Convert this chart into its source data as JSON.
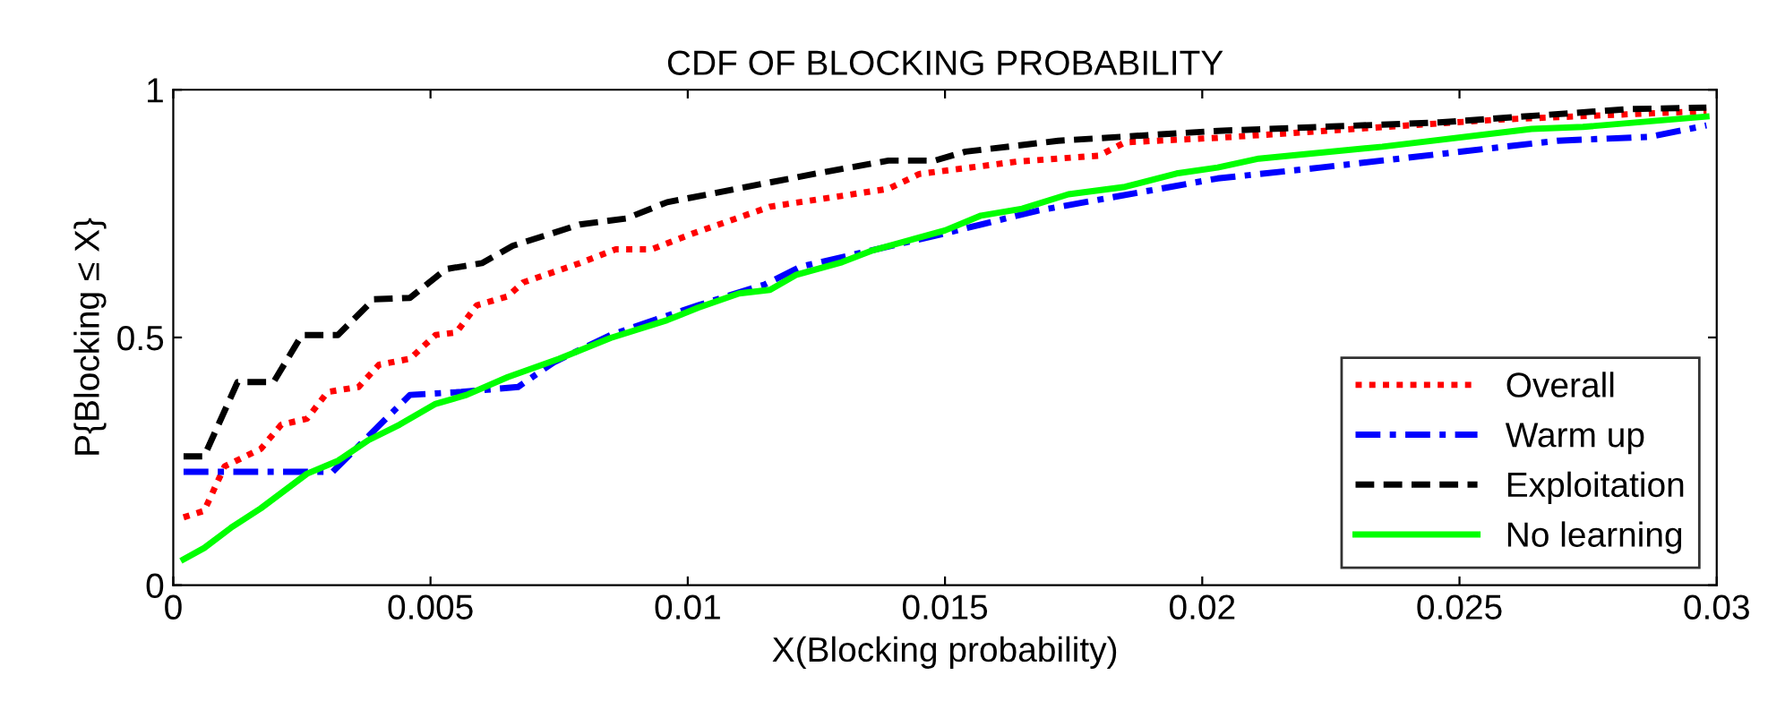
{
  "chart_data": {
    "type": "line",
    "title": "CDF OF BLOCKING PROBABILITY",
    "xlabel": "X(Blocking probability)",
    "ylabel": "P{Blocking ≤ X}",
    "xlim": [
      0,
      0.03
    ],
    "ylim": [
      0,
      1
    ],
    "xticks": [
      0,
      0.005,
      0.01,
      0.015,
      0.02,
      0.025,
      0.03
    ],
    "yticks": [
      0,
      0.5,
      1
    ],
    "grid": false,
    "legend": "bottom right",
    "marker": "none",
    "series": [
      {
        "name": "Overall",
        "color": "#ff0000",
        "line_style": "dotted",
        "x": [
          0.0002,
          0.0006,
          0.001,
          0.0017,
          0.0021,
          0.0026,
          0.003,
          0.0036,
          0.004,
          0.0046,
          0.0051,
          0.0055,
          0.0059,
          0.0065,
          0.0068,
          0.0079,
          0.0086,
          0.0093,
          0.0101,
          0.0116,
          0.0139,
          0.0145,
          0.0164,
          0.018,
          0.0185,
          0.0203,
          0.0258,
          0.0298
        ],
        "values": [
          0.137,
          0.15,
          0.24,
          0.275,
          0.324,
          0.336,
          0.39,
          0.4,
          0.445,
          0.457,
          0.505,
          0.51,
          0.565,
          0.583,
          0.611,
          0.65,
          0.678,
          0.678,
          0.71,
          0.764,
          0.8,
          0.83,
          0.855,
          0.867,
          0.894,
          0.903,
          0.94,
          0.957
        ]
      },
      {
        "name": "Warm up",
        "color": "#0000ff",
        "line_style": "dashdot",
        "x": [
          0.0002,
          0.0031,
          0.0046,
          0.0056,
          0.0067,
          0.0074,
          0.0085,
          0.0102,
          0.0115,
          0.0122,
          0.015,
          0.0168,
          0.0203,
          0.0223,
          0.0269,
          0.0287,
          0.0298
        ],
        "values": [
          0.229,
          0.229,
          0.384,
          0.39,
          0.4,
          0.45,
          0.505,
          0.565,
          0.607,
          0.643,
          0.71,
          0.756,
          0.821,
          0.843,
          0.897,
          0.905,
          0.928
        ]
      },
      {
        "name": "Exploitation",
        "color": "#000000",
        "line_style": "dashed",
        "x": [
          0.0002,
          0.0006,
          0.00125,
          0.00195,
          0.0025,
          0.0032,
          0.0039,
          0.0046,
          0.0053,
          0.006,
          0.0066,
          0.0079,
          0.0088,
          0.0096,
          0.0124,
          0.0139,
          0.0148,
          0.0154,
          0.0172,
          0.0192,
          0.0203,
          0.0246,
          0.0283,
          0.0298
        ],
        "values": [
          0.26,
          0.26,
          0.41,
          0.41,
          0.505,
          0.505,
          0.577,
          0.58,
          0.638,
          0.65,
          0.685,
          0.728,
          0.74,
          0.773,
          0.829,
          0.857,
          0.857,
          0.875,
          0.897,
          0.91,
          0.917,
          0.934,
          0.961,
          0.964
        ]
      },
      {
        "name": "No learning",
        "color": "#00ff00",
        "line_style": "solid",
        "x": [
          0.0002,
          0.0006,
          0.00115,
          0.0017,
          0.0026,
          0.0032,
          0.0038,
          0.0044,
          0.0051,
          0.0057,
          0.0065,
          0.0075,
          0.0085,
          0.0096,
          0.0102,
          0.011,
          0.0116,
          0.0121,
          0.013,
          0.0136,
          0.015,
          0.0157,
          0.0165,
          0.0174,
          0.0185,
          0.0195,
          0.0203,
          0.0211,
          0.0235,
          0.0264,
          0.0274,
          0.0298
        ],
        "values": [
          0.052,
          0.075,
          0.118,
          0.155,
          0.225,
          0.251,
          0.293,
          0.324,
          0.366,
          0.384,
          0.42,
          0.457,
          0.499,
          0.535,
          0.56,
          0.589,
          0.596,
          0.626,
          0.652,
          0.676,
          0.716,
          0.746,
          0.76,
          0.789,
          0.804,
          0.831,
          0.843,
          0.861,
          0.885,
          0.921,
          0.925,
          0.946
        ]
      }
    ]
  }
}
